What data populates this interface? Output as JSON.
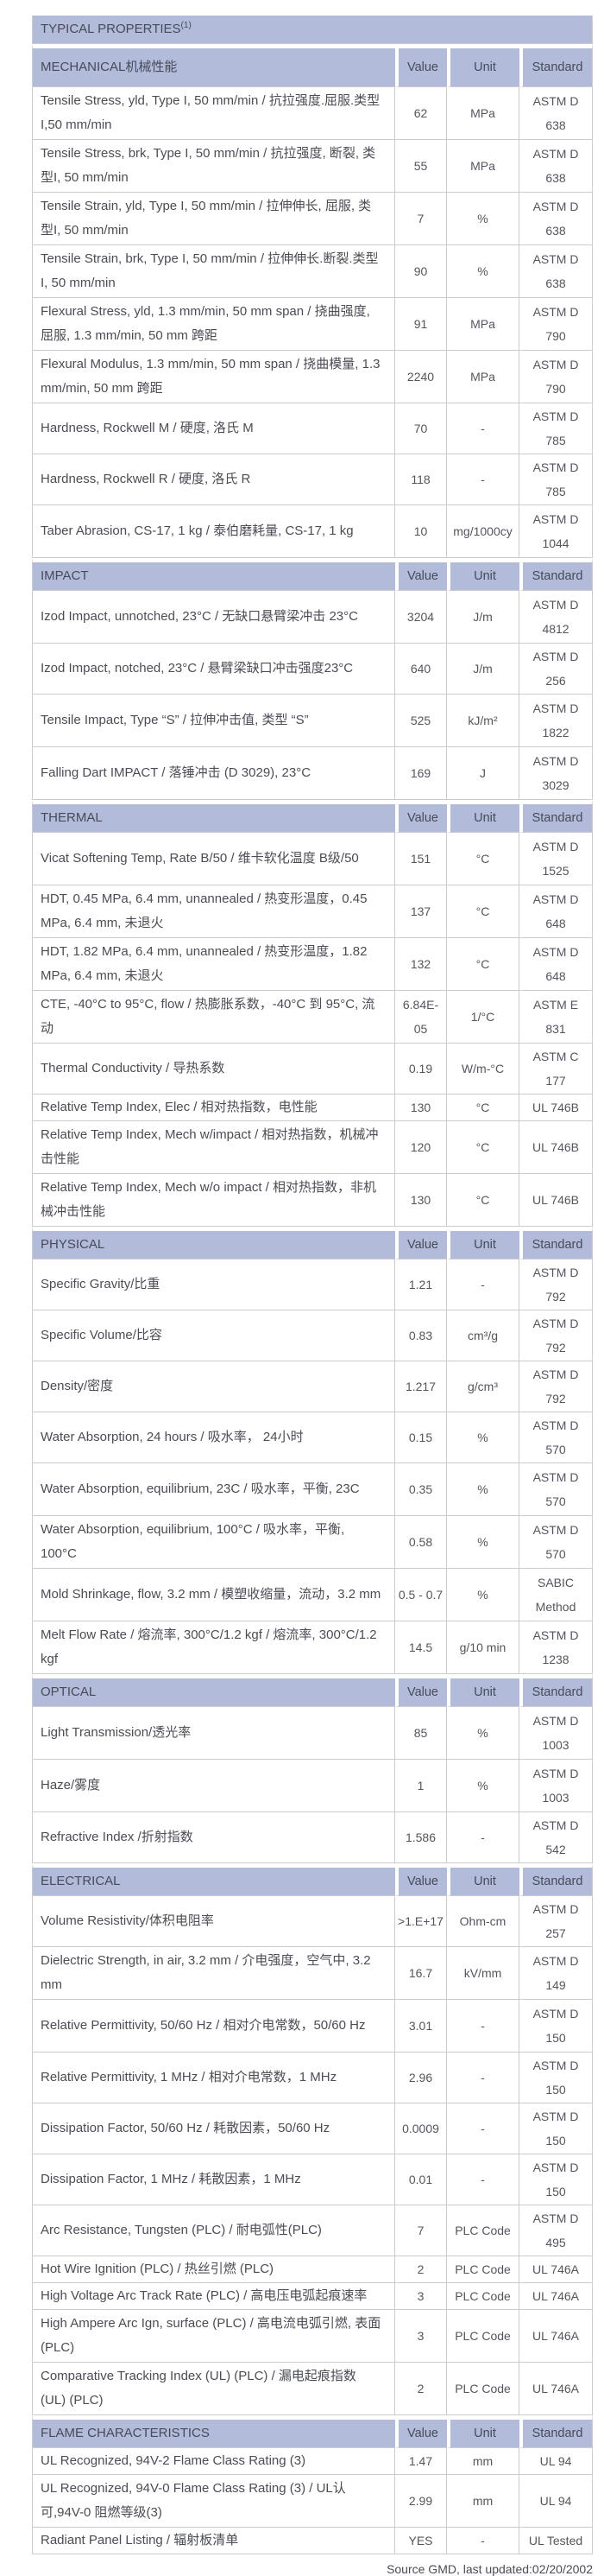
{
  "title": "TYPICAL PROPERTIES",
  "title_superscript": "(1)",
  "columns": [
    "Value",
    "Unit",
    "Standard"
  ],
  "colors": {
    "header_band": "#b2bcda",
    "border": "#cccccc",
    "text": "#4b4c55",
    "background": "#ffffff"
  },
  "footer": "Source GMD, last updated:02/20/2002",
  "sections": [
    {
      "name": "MECHANICAL机械性能",
      "rows": [
        {
          "property": "Tensile Stress, yld, Type I, 50 mm/min / 抗拉强度.屈服.类型I,50 mm/min",
          "value": "62",
          "unit": "MPa",
          "standard": "ASTM D 638",
          "lines": 2
        },
        {
          "property": "Tensile Stress, brk, Type I, 50 mm/min / 抗拉强度, 断裂, 类型I, 50 mm/min",
          "value": "55",
          "unit": "MPa",
          "standard": "ASTM D 638",
          "lines": 2
        },
        {
          "property": "Tensile Strain, yld, Type I, 50 mm/min / 拉伸伸长, 屈服, 类型I, 50 mm/min",
          "value": "7",
          "unit": "%",
          "standard": "ASTM D 638",
          "lines": 2
        },
        {
          "property": "Tensile Strain, brk, Type I, 50 mm/min / 拉伸伸长.断裂.类型I, 50 mm/min",
          "value": "90",
          "unit": "%",
          "standard": "ASTM D 638",
          "lines": 2
        },
        {
          "property": "Flexural Stress, yld, 1.3 mm/min, 50 mm span / 挠曲强度, 屈服, 1.3 mm/min, 50 mm 跨距",
          "value": "91",
          "unit": "MPa",
          "standard": "ASTM D 790",
          "lines": 2
        },
        {
          "property": "Flexural Modulus, 1.3 mm/min, 50 mm span / 挠曲模量, 1.3 mm/min, 50 mm 跨距",
          "value": "2240",
          "unit": "MPa",
          "standard": "ASTM D 790",
          "lines": 2
        },
        {
          "property": "Hardness, Rockwell M / 硬度, 洛氏 M",
          "value": "70",
          "unit": "-",
          "standard": "ASTM D 785",
          "lines": 1
        },
        {
          "property": "Hardness, Rockwell R / 硬度, 洛氏 R",
          "value": "118",
          "unit": "-",
          "standard": "ASTM D 785",
          "lines": 1
        },
        {
          "property": "Taber Abrasion, CS-17, 1 kg / 泰伯磨耗量, CS-17, 1 kg",
          "value": "10",
          "unit": "mg/1000cy",
          "standard": "ASTM D 1044",
          "lines": 2
        }
      ]
    },
    {
      "name": "IMPACT",
      "rows": [
        {
          "property": "Izod Impact, unnotched, 23°C / 无缺口悬臂梁冲击 23°C",
          "value": "3204",
          "unit": "J/m",
          "standard": "ASTM D 4812",
          "lines": 2
        },
        {
          "property": "Izod Impact, notched, 23°C / 悬臂梁缺口冲击强度23°C",
          "value": "640",
          "unit": "J/m",
          "standard": "ASTM D 256",
          "lines": 1
        },
        {
          "property": "Tensile Impact, Type “S” / 拉伸冲击值, 类型 “S”",
          "value": "525",
          "unit": "kJ/m²",
          "standard": "ASTM D 1822",
          "lines": 2
        },
        {
          "property": "Falling Dart IMPACT / 落锤冲击 (D 3029), 23°C",
          "value": "169",
          "unit": "J",
          "standard": "ASTM D 3029",
          "lines": 2
        }
      ]
    },
    {
      "name": "THERMAL",
      "rows": [
        {
          "property": "Vicat Softening Temp, Rate B/50 / 维卡软化温度 B级/50",
          "value": "151",
          "unit": "°C",
          "standard": "ASTM D 1525",
          "lines": 2
        },
        {
          "property": "HDT, 0.45 MPa, 6.4 mm, unannealed / 热变形温度，0.45 MPa, 6.4 mm, 未退火",
          "value": "137",
          "unit": "°C",
          "standard": "ASTM D 648",
          "lines": 2
        },
        {
          "property": "HDT, 1.82 MPa, 6.4 mm, unannealed / 热变形温度，1.82 MPa, 6.4 mm, 未退火",
          "value": "132",
          "unit": "°C",
          "standard": "ASTM D 648",
          "lines": 2
        },
        {
          "property": "CTE, -40°C to 95°C, flow / 热膨胀系数，-40°C 到 95°C, 流动",
          "value": "6.84E-05",
          "unit": "1/°C",
          "standard": "ASTM E 831",
          "lines": 2
        },
        {
          "property": "Thermal Conductivity / 导热系数",
          "value": "0.19",
          "unit": "W/m-°C",
          "standard": "ASTM C 177",
          "lines": 1
        },
        {
          "property": "Relative Temp Index, Elec / 相对热指数，电性能",
          "value": "130",
          "unit": "°C",
          "standard": "UL 746B",
          "lines": 1
        },
        {
          "property": "Relative Temp Index, Mech w/impact / 相对热指数，机械冲击性能",
          "value": "120",
          "unit": "°C",
          "standard": "UL 746B",
          "lines": 2
        },
        {
          "property": "Relative Temp Index, Mech w/o impact / 相对热指数，非机械冲击性能",
          "value": "130",
          "unit": "°C",
          "standard": "UL 746B",
          "lines": 2
        }
      ]
    },
    {
      "name": "PHYSICAL",
      "rows": [
        {
          "property": "Specific Gravity/比重",
          "value": "1.21",
          "unit": "-",
          "standard": "ASTM D 792",
          "lines": 1
        },
        {
          "property": "Specific Volume/比容",
          "value": "0.83",
          "unit": "cm³/g",
          "standard": "ASTM D 792",
          "lines": 1
        },
        {
          "property": "Density/密度",
          "value": "1.217",
          "unit": "g/cm³",
          "standard": "ASTM D 792",
          "lines": 1
        },
        {
          "property": "Water Absorption, 24 hours / 吸水率， 24小时",
          "value": "0.15",
          "unit": "%",
          "standard": "ASTM D 570",
          "lines": 1
        },
        {
          "property": "Water Absorption, equilibrium, 23C / 吸水率，平衡, 23C",
          "value": "0.35",
          "unit": "%",
          "standard": "ASTM D 570",
          "lines": 2
        },
        {
          "property": "Water Absorption, equilibrium, 100°C / 吸水率，平衡, 100°C",
          "value": "0.58",
          "unit": "%",
          "standard": "ASTM D 570",
          "lines": 2
        },
        {
          "property": "Mold Shrinkage, flow, 3.2 mm / 模塑收缩量，流动，3.2 mm",
          "value": "0.5 - 0.7",
          "unit": "%",
          "standard": "SABIC Method",
          "lines": 2
        },
        {
          "property": "Melt Flow Rate / 熔流率, 300°C/1.2 kgf / 熔流率, 300°C/1.2 kgf",
          "value": "14.5",
          "unit": "g/10 min",
          "standard": "ASTM D 1238",
          "lines": 2
        }
      ]
    },
    {
      "name": "OPTICAL",
      "rows": [
        {
          "property": "Light Transmission/透光率",
          "value": "85",
          "unit": "%",
          "standard": "ASTM D 1003",
          "lines": 2
        },
        {
          "property": "Haze/雾度",
          "value": "1",
          "unit": "%",
          "standard": "ASTM D 1003",
          "lines": 2
        },
        {
          "property": "Refractive Index /折射指数",
          "value": "1.586",
          "unit": "-",
          "standard": "ASTM D 542",
          "lines": 1
        }
      ]
    },
    {
      "name": "ELECTRICAL",
      "rows": [
        {
          "property": "Volume Resistivity/体积电阻率",
          "value": ">1.E+17",
          "unit": "Ohm-cm",
          "standard": "ASTM D 257",
          "lines": 1
        },
        {
          "property": "Dielectric Strength, in air, 3.2 mm / 介电强度，空气中, 3.2 mm",
          "value": "16.7",
          "unit": "kV/mm",
          "standard": "ASTM D 149",
          "lines": 2
        },
        {
          "property": "Relative Permittivity, 50/60 Hz / 相对介电常数，50/60 Hz",
          "value": "3.01",
          "unit": "-",
          "standard": "ASTM D 150",
          "lines": 2
        },
        {
          "property": "Relative Permittivity, 1 MHz / 相对介电常数，1 MHz",
          "value": "2.96",
          "unit": "-",
          "standard": "ASTM D 150",
          "lines": 1
        },
        {
          "property": "Dissipation Factor, 50/60 Hz / 耗散因素，50/60 Hz",
          "value": "0.0009",
          "unit": "-",
          "standard": "ASTM D 150",
          "lines": 1
        },
        {
          "property": "Dissipation Factor, 1 MHz / 耗散因素，1 MHz",
          "value": "0.01",
          "unit": "-",
          "standard": "ASTM D 150",
          "lines": 1
        },
        {
          "property": "Arc Resistance, Tungsten (PLC) / 耐电弧性(PLC)",
          "value": "7",
          "unit": "PLC Code",
          "standard": "ASTM D 495",
          "lines": 1
        },
        {
          "property": "Hot Wire Ignition (PLC) / 热丝引燃 (PLC)",
          "value": "2",
          "unit": "PLC Code",
          "standard": "UL 746A",
          "lines": 1
        },
        {
          "property": "High Voltage Arc Track Rate (PLC) / 高电压电弧起痕速率",
          "value": "3",
          "unit": "PLC Code",
          "standard": "UL 746A",
          "lines": 1
        },
        {
          "property": "High Ampere Arc Ign, surface (PLC) / 高电流电弧引燃, 表面(PLC)",
          "value": "3",
          "unit": "PLC Code",
          "standard": "UL 746A",
          "lines": 2
        },
        {
          "property": "Comparative Tracking Index (UL) (PLC) / 漏电起痕指数 (UL) (PLC)",
          "value": "2",
          "unit": "PLC Code",
          "standard": "UL 746A",
          "lines": 2
        }
      ]
    },
    {
      "name": "FLAME CHARACTERISTICS",
      "rows": [
        {
          "property": "UL Recognized, 94V-2 Flame Class Rating (3)",
          "value": "1.47",
          "unit": "mm",
          "standard": "UL 94",
          "lines": 1
        },
        {
          "property": "UL Recognized, 94V-0 Flame Class Rating (3) / UL认可,94V-0 阻燃等级(3)",
          "value": "2.99",
          "unit": "mm",
          "standard": "UL 94",
          "lines": 2
        },
        {
          "property": "Radiant Panel Listing / 辐射板清单",
          "value": "YES",
          "unit": "-",
          "standard": "UL Tested",
          "lines": 1
        }
      ]
    }
  ]
}
